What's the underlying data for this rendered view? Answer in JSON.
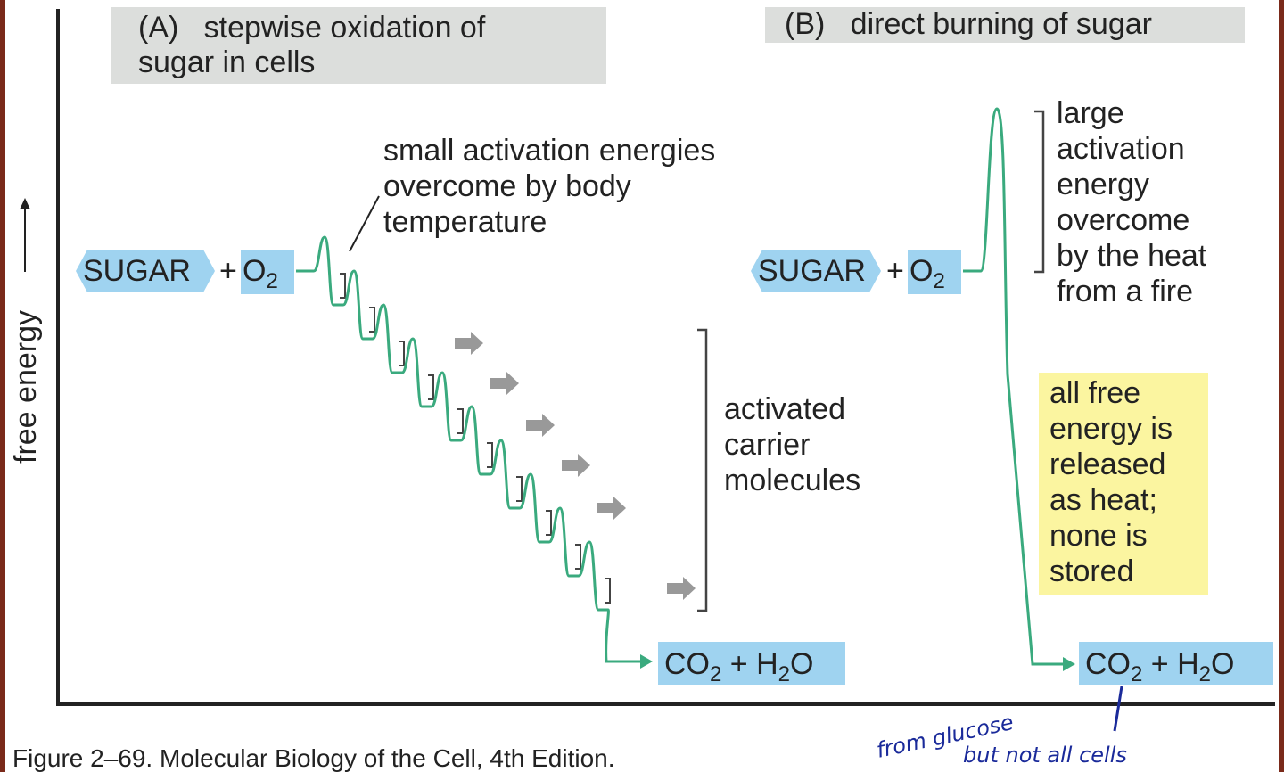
{
  "panel_a": {
    "title_lines": [
      "(A)   stepwise oxidation of",
      "sugar in cells"
    ],
    "reactant": "SUGAR",
    "plus": "+",
    "oxygen": {
      "base": "O",
      "sub": "2"
    },
    "activation_note": [
      "small activation energies",
      "overcome by body",
      "temperature"
    ],
    "carrier_note": [
      "activated",
      "carrier",
      "molecules"
    ],
    "product": {
      "c": "CO",
      "c_sub": "2",
      "plus": " + ",
      "h": "H",
      "h_sub": "2",
      "o": "O"
    }
  },
  "panel_b": {
    "title": "(B)   direct burning of sugar",
    "reactant": "SUGAR",
    "plus": "+",
    "oxygen": {
      "base": "O",
      "sub": "2"
    },
    "activation_note": [
      "large",
      "activation",
      "energy",
      "overcome",
      "by the heat",
      "from a fire"
    ],
    "heat_note": [
      "all free",
      "energy is",
      "released",
      "as heat;",
      "none is",
      "stored"
    ],
    "product": {
      "c": "CO",
      "c_sub": "2",
      "plus": " + ",
      "h": "H",
      "h_sub": "2",
      "o": "O"
    }
  },
  "axis_label": "free energy",
  "caption": "Figure 2–69. Molecular Biology of the Cell, 4th Edition.",
  "handwritten_notes": [
    "from glucose",
    "but not all cells"
  ]
}
